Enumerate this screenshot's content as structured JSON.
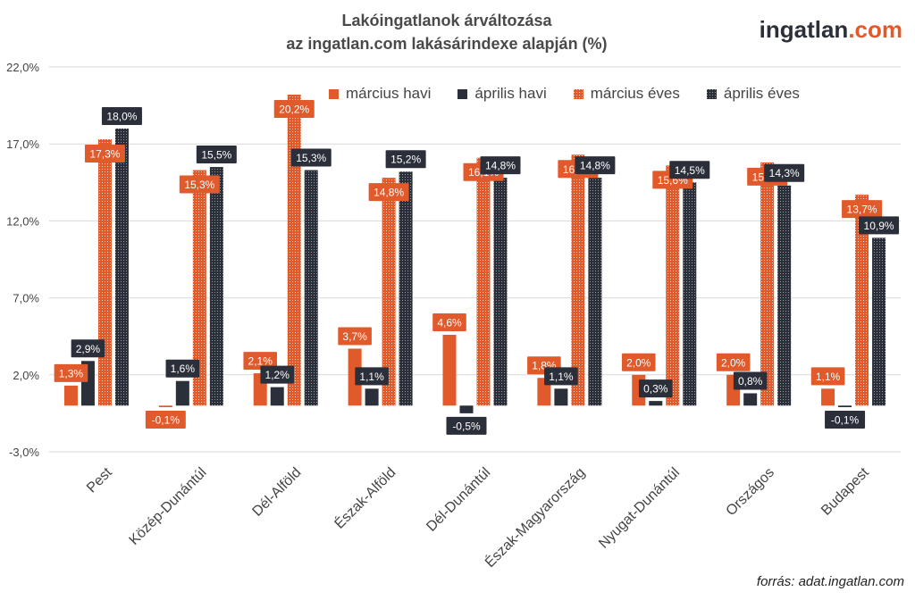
{
  "header": {
    "title_line1": "Lakóingatlanok árváltozása",
    "title_line2": "az ingatlan.com lakásárindexe alapján (%)",
    "brand_name": "ingatlan",
    "brand_tld": ".com"
  },
  "footer": {
    "source": "forrás: adat.ingatlan.com"
  },
  "colors": {
    "orange": "#e05a2b",
    "navy": "#2b2f3a",
    "grid": "#d9d9d9"
  },
  "chart_data": {
    "type": "bar",
    "ylim": [
      -3,
      22
    ],
    "yticks": [
      "22,0%",
      "17,0%",
      "12,0%",
      "7,0%",
      "2,0%",
      "-3,0%"
    ],
    "ytick_values": [
      22,
      17,
      12,
      7,
      2,
      -3
    ],
    "legend_placement": "top",
    "grid": true,
    "categories": [
      "Pest",
      "Közép-Dunántúl",
      "Dél-Alföld",
      "Észak-Alföld",
      "Dél-Dunántúl",
      "Észak-Magyarország",
      "Nyugat-Dunántúl",
      "Országos",
      "Budapest"
    ],
    "series": [
      {
        "name": "március havi",
        "color": "#e05a2b",
        "pattern": "solid",
        "values": [
          1.3,
          -0.1,
          2.1,
          3.7,
          4.6,
          1.8,
          2.0,
          2.0,
          1.1
        ],
        "labels": [
          "1,3%",
          "-0,1%",
          "2,1%",
          "3,7%",
          "4,6%",
          "1,8%",
          "2,0%",
          "2,0%",
          "1,1%"
        ]
      },
      {
        "name": "április havi",
        "color": "#2b2f3a",
        "pattern": "solid",
        "values": [
          2.9,
          1.6,
          1.2,
          1.1,
          -0.5,
          1.1,
          0.3,
          0.8,
          -0.1
        ],
        "labels": [
          "2,9%",
          "1,6%",
          "1,2%",
          "1,1%",
          "-0,5%",
          "1,1%",
          "0,3%",
          "0,8%",
          "-0,1%"
        ]
      },
      {
        "name": "március éves",
        "color": "#e05a2b",
        "pattern": "dotted",
        "values": [
          17.3,
          15.3,
          20.2,
          14.8,
          16.1,
          16.3,
          15.6,
          15.8,
          13.7
        ],
        "labels": [
          "17,3%",
          "15,3%",
          "20,2%",
          "14,8%",
          "16,1%",
          "16,3%",
          "15,6%",
          "15,8%",
          "13,7%"
        ]
      },
      {
        "name": "április éves",
        "color": "#2b2f3a",
        "pattern": "dotted",
        "values": [
          18.0,
          15.5,
          15.3,
          15.2,
          14.8,
          14.8,
          14.5,
          14.3,
          10.9
        ],
        "labels": [
          "18,0%",
          "15,5%",
          "15,3%",
          "15,2%",
          "14,8%",
          "14,8%",
          "14,5%",
          "14,3%",
          "10,9%"
        ]
      }
    ]
  }
}
